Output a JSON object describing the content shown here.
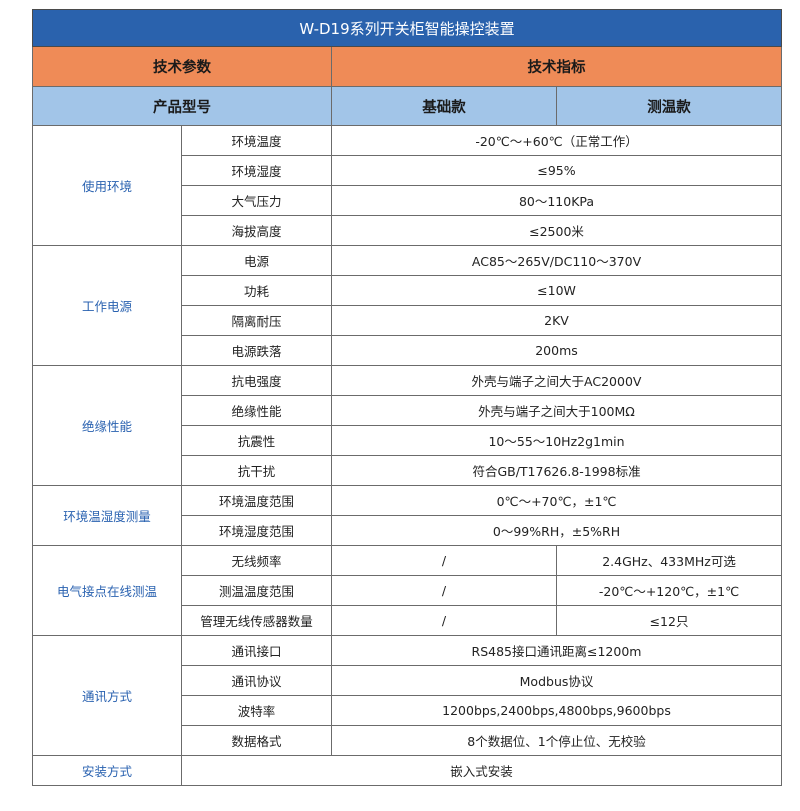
{
  "title": "W-D19系列开关柜智能操控装置",
  "header": {
    "param": "技术参数",
    "spec": "技术指标"
  },
  "subheader": {
    "model": "产品型号",
    "basic": "基础款",
    "temp": "测温款"
  },
  "groups": [
    {
      "category": "使用环境",
      "rows": [
        {
          "name": "环境温度",
          "value": "-20℃～+60℃（正常工作）"
        },
        {
          "name": "环境湿度",
          "value": "≤95%"
        },
        {
          "name": "大气压力",
          "value": "80～110KPa"
        },
        {
          "name": "海拔高度",
          "value": "≤2500米"
        }
      ]
    },
    {
      "category": "工作电源",
      "rows": [
        {
          "name": "电源",
          "value": "AC85～265V/DC110～370V"
        },
        {
          "name": "功耗",
          "value": "≤10W"
        },
        {
          "name": "隔离耐压",
          "value": "2KV"
        },
        {
          "name": "电源跌落",
          "value": "200ms"
        }
      ]
    },
    {
      "category": "绝缘性能",
      "rows": [
        {
          "name": "抗电强度",
          "value": "外壳与端子之间大于AC2000V"
        },
        {
          "name": "绝缘性能",
          "value": "外壳与端子之间大于100MΩ"
        },
        {
          "name": "抗震性",
          "value": "10～55～10Hz2g1min"
        },
        {
          "name": "抗干扰",
          "value": "符合GB/T17626.8-1998标准"
        }
      ]
    },
    {
      "category": "环境温湿度测量",
      "rows": [
        {
          "name": "环境温度范围",
          "value": "0℃～+70℃，±1℃"
        },
        {
          "name": "环境湿度范围",
          "value": "0～99%RH，±5%RH"
        }
      ]
    },
    {
      "category": "电气接点在线测温",
      "rows": [
        {
          "name": "无线频率",
          "basic": "/",
          "temp": "2.4GHz、433MHz可选"
        },
        {
          "name": "测温温度范围",
          "basic": "/",
          "temp": "-20℃～+120℃，±1℃"
        },
        {
          "name": "管理无线传感器数量",
          "basic": "/",
          "temp": "≤12只"
        }
      ]
    },
    {
      "category": "通讯方式",
      "rows": [
        {
          "name": "通讯接口",
          "value": "RS485接口通讯距离≤1200m"
        },
        {
          "name": "通讯协议",
          "value": "Modbus协议"
        },
        {
          "name": "波特率",
          "value": "1200bps,2400bps,4800bps,9600bps"
        },
        {
          "name": "数据格式",
          "value": "8个数据位、1个停止位、无校验"
        }
      ]
    },
    {
      "category": "安装方式",
      "value": "嵌入式安装"
    }
  ]
}
